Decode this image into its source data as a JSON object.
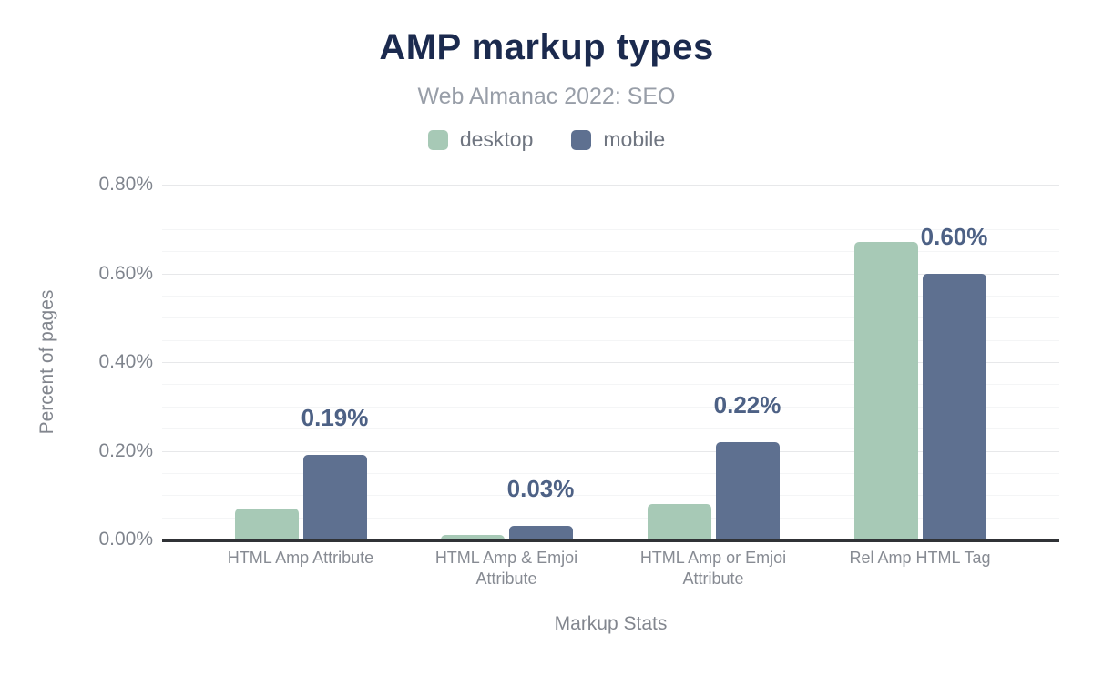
{
  "chart_data": {
    "type": "bar",
    "title": "AMP markup types",
    "subtitle": "Web Almanac 2022: SEO",
    "categories": [
      "HTML Amp Attribute",
      "HTML Amp & Emjoi Attribute",
      "HTML Amp or Emjoi Attribute",
      "Rel Amp HTML Tag"
    ],
    "series": [
      {
        "name": "desktop",
        "color": "#a7c9b6",
        "values": [
          0.07,
          0.01,
          0.08,
          0.67
        ],
        "labels": [
          "",
          "",
          "",
          ""
        ]
      },
      {
        "name": "mobile",
        "color": "#5e7090",
        "values": [
          0.19,
          0.03,
          0.22,
          0.6
        ],
        "labels": [
          "0.19%",
          "0.03%",
          "0.22%",
          "0.60%"
        ]
      }
    ],
    "xlabel": "Markup Stats",
    "ylabel": "Percent of pages",
    "ylim": [
      0,
      0.8
    ],
    "yticks": [
      {
        "value": 0.0,
        "label": "0.00%"
      },
      {
        "value": 0.2,
        "label": "0.20%"
      },
      {
        "value": 0.4,
        "label": "0.40%"
      },
      {
        "value": 0.6,
        "label": "0.60%"
      },
      {
        "value": 0.8,
        "label": "0.80%"
      }
    ],
    "minor_grid_step": 0.05,
    "grid": true,
    "legend_position": "top"
  },
  "colors": {
    "title": "#1b2a4e",
    "subtitle": "#989ea8",
    "axis_line": "#303236",
    "data_label": "#4d6185",
    "desktop_bar": "#a7c9b6",
    "mobile_bar": "#5e7090"
  }
}
